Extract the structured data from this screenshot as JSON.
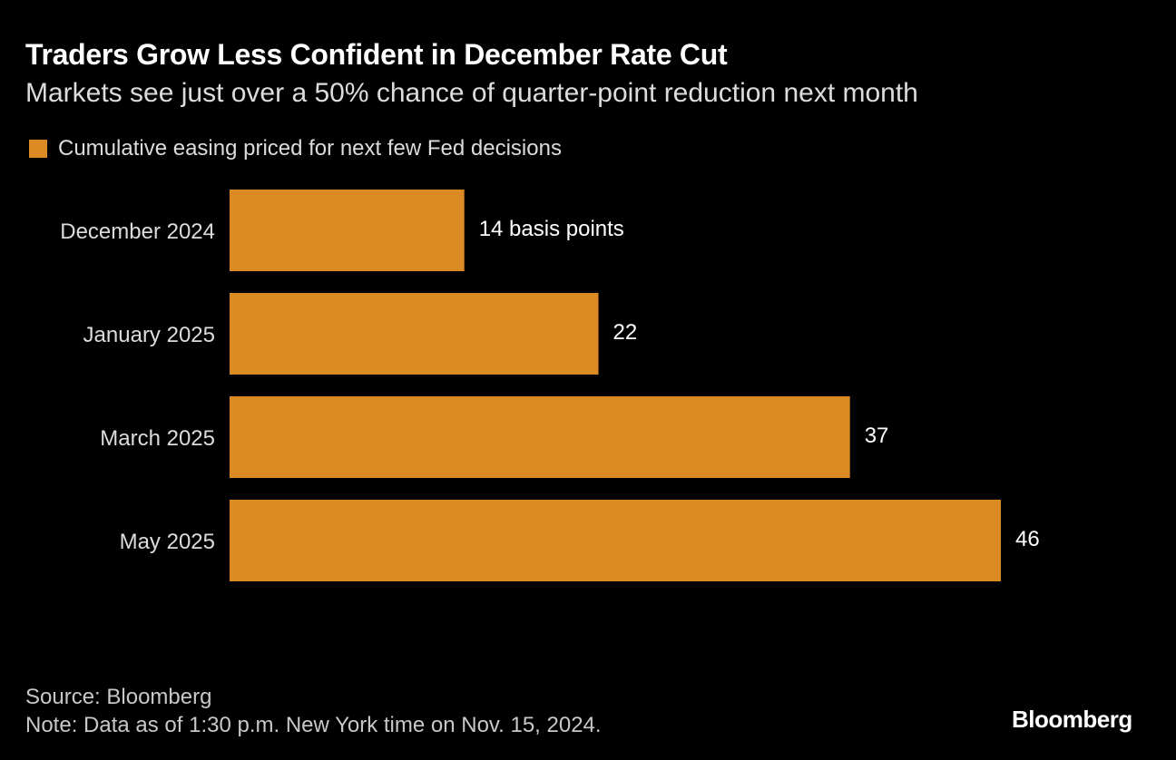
{
  "colors": {
    "bar": "#DC8A24",
    "background": "#000000",
    "text": "#FFFFFF"
  },
  "chart_data": {
    "type": "bar",
    "orientation": "horizontal",
    "title": "Traders Grow Less Confident in December Rate Cut",
    "subtitle": "Markets see just over a 50% chance of quarter-point reduction next month",
    "categories": [
      "December 2024",
      "January 2025",
      "March 2025",
      "May 2025"
    ],
    "series": [
      {
        "name": "Cumulative easing priced for next few Fed decisions",
        "values": [
          14,
          22,
          37,
          46
        ]
      }
    ],
    "data_labels": [
      "14 basis points",
      "22",
      "37",
      "46"
    ],
    "xlim": [
      0,
      46
    ],
    "grid": false,
    "legend": "top-left"
  },
  "footer": {
    "source": "Source: Bloomberg",
    "note": "Note: Data as of 1:30 p.m. New York time on Nov. 15, 2024."
  },
  "logo": "Bloomberg"
}
